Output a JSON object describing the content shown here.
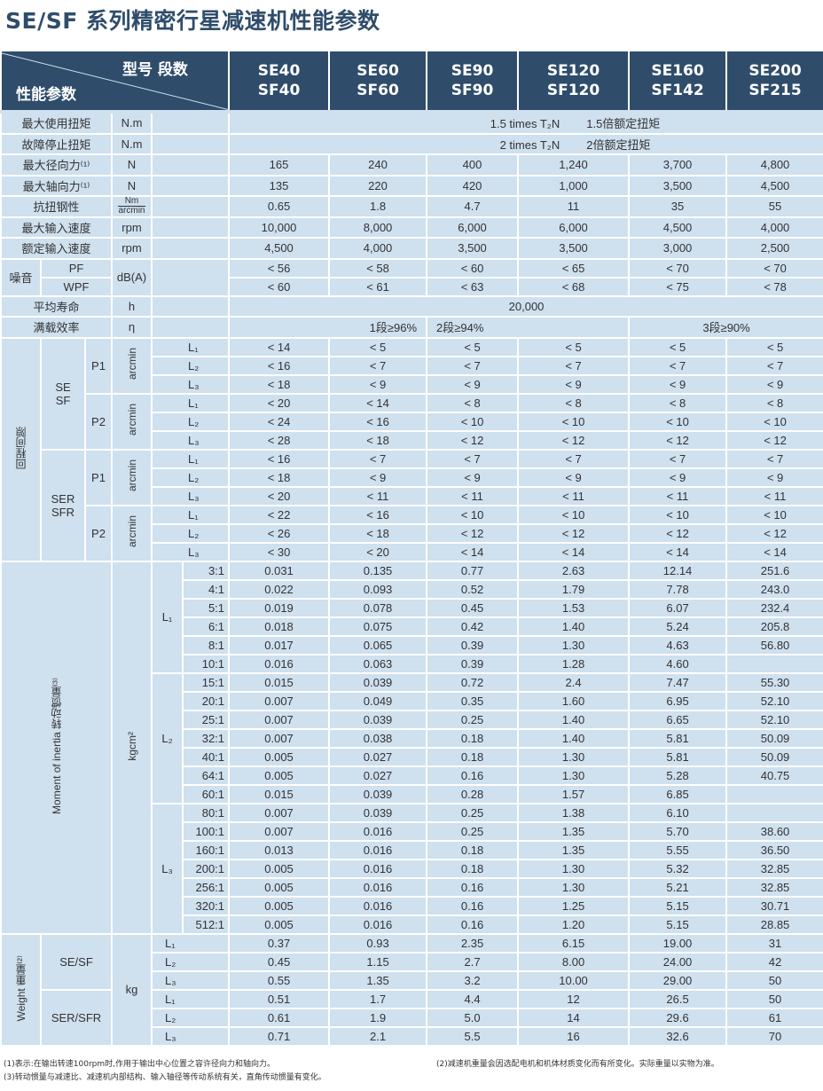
{
  "title": "SE/SF 系列精密行星减速机性能参数",
  "header": {
    "corner_top": "型号 段数",
    "corner_bottom": "性能参数",
    "models": [
      [
        "SE40",
        "SF40"
      ],
      [
        "SE60",
        "SF60"
      ],
      [
        "SE90",
        "SF90"
      ],
      [
        "SE120",
        "SF120"
      ],
      [
        "SE160",
        "SF142"
      ],
      [
        "SE200",
        "SF215"
      ]
    ]
  },
  "general": [
    {
      "label": "最大使用扭矩",
      "unit": "N.m",
      "span": [
        "1.5 times T₂N",
        "1.5倍额定扭矩"
      ]
    },
    {
      "label": "故障停止扭矩",
      "unit": "N.m",
      "span": [
        "2 times T₂N",
        "2倍额定扭矩"
      ]
    },
    {
      "label": "最大径向力⁽¹⁾",
      "unit": "N",
      "values": [
        "165",
        "240",
        "400",
        "1,240",
        "3,700",
        "4,800"
      ]
    },
    {
      "label": "最大轴向力⁽¹⁾",
      "unit": "N",
      "values": [
        "135",
        "220",
        "420",
        "1,000",
        "3,500",
        "4,500"
      ]
    },
    {
      "label": "抗扭钢性",
      "unit": [
        "Nm",
        "arcmin"
      ],
      "values": [
        "0.65",
        "1.8",
        "4.7",
        "11",
        "35",
        "55"
      ]
    },
    {
      "label": "最大输入速度",
      "unit": "rpm",
      "values": [
        "10,000",
        "8,000",
        "6,000",
        "6,000",
        "4,500",
        "4,000"
      ]
    },
    {
      "label": "额定输入速度",
      "unit": "rpm",
      "values": [
        "4,500",
        "4,000",
        "3,500",
        "3,500",
        "3,000",
        "2,500"
      ]
    }
  ],
  "noise": {
    "label": "噪音",
    "unit": "dB(A)",
    "rows": [
      {
        "label": "PF",
        "values": [
          "< 56",
          "< 58",
          "< 60",
          "< 65",
          "< 70",
          "< 70"
        ]
      },
      {
        "label": "WPF",
        "values": [
          "< 60",
          "< 61",
          "< 63",
          "< 68",
          "< 75",
          "< 78"
        ]
      }
    ]
  },
  "life": {
    "label": "平均寿命",
    "unit": "h",
    "value": "20,000"
  },
  "efficiency": {
    "label": "满载效率",
    "unit": "η",
    "values": [
      "1段≥96%",
      "2段≥94%",
      "3段≥90%"
    ]
  },
  "backlash": {
    "label": "回程间隙",
    "unit": "arcmin",
    "groups": [
      {
        "label": [
          "SE",
          "SF"
        ],
        "sub": [
          {
            "label": "P1",
            "rows": [
              [
                "L₁",
                "< 14",
                "< 5",
                "< 5",
                "< 5",
                "< 5",
                "< 5"
              ],
              [
                "L₂",
                "< 16",
                "< 7",
                "< 7",
                "< 7",
                "< 7",
                "< 7"
              ],
              [
                "L₃",
                "< 18",
                "< 9",
                "< 9",
                "< 9",
                "< 9",
                "< 9"
              ]
            ]
          },
          {
            "label": "P2",
            "rows": [
              [
                "L₁",
                "< 20",
                "< 14",
                "< 8",
                "< 8",
                "< 8",
                "< 8"
              ],
              [
                "L₂",
                "< 24",
                "< 16",
                "< 10",
                "< 10",
                "< 10",
                "< 10"
              ],
              [
                "L₃",
                "< 28",
                "< 18",
                "< 12",
                "< 12",
                "< 12",
                "< 12"
              ]
            ]
          }
        ]
      },
      {
        "label": [
          "SER",
          "SFR"
        ],
        "sub": [
          {
            "label": "P1",
            "rows": [
              [
                "L₁",
                "< 16",
                "< 7",
                "< 7",
                "< 7",
                "< 7",
                "< 7"
              ],
              [
                "L₂",
                "< 18",
                "< 9",
                "< 9",
                "< 9",
                "< 9",
                "< 9"
              ],
              [
                "L₃",
                "< 20",
                "< 11",
                "< 11",
                "< 11",
                "< 11",
                "< 11"
              ]
            ]
          },
          {
            "label": "P2",
            "rows": [
              [
                "L₁",
                "< 22",
                "< 16",
                "< 10",
                "< 10",
                "< 10",
                "< 10"
              ],
              [
                "L₂",
                "< 26",
                "< 18",
                "< 12",
                "< 12",
                "< 12",
                "< 12"
              ],
              [
                "L₃",
                "< 30",
                "< 20",
                "< 14",
                "< 14",
                "< 14",
                "< 14"
              ]
            ]
          }
        ]
      }
    ]
  },
  "inertia": {
    "label": "Moment of inertia 转动惯量⁽³⁾",
    "unit": "kgcm²",
    "groups": [
      {
        "label": "L₁",
        "rows": [
          [
            "3:1",
            "0.031",
            "0.135",
            "0.77",
            "2.63",
            "12.14",
            "251.6"
          ],
          [
            "4:1",
            "0.022",
            "0.093",
            "0.52",
            "1.79",
            "7.78",
            "243.0"
          ],
          [
            "5:1",
            "0.019",
            "0.078",
            "0.45",
            "1.53",
            "6.07",
            "232.4"
          ],
          [
            "6:1",
            "0.018",
            "0.075",
            "0.42",
            "1.40",
            "5.24",
            "205.8"
          ],
          [
            "8:1",
            "0.017",
            "0.065",
            "0.39",
            "1.30",
            "4.63",
            "56.80"
          ],
          [
            "10:1",
            "0.016",
            "0.063",
            "0.39",
            "1.28",
            "4.60",
            ""
          ]
        ]
      },
      {
        "label": "L₂",
        "rows": [
          [
            "15:1",
            "0.015",
            "0.039",
            "0.72",
            "2.4",
            "7.47",
            "55.30"
          ],
          [
            "20:1",
            "0.007",
            "0.049",
            "0.35",
            "1.60",
            "6.95",
            "52.10"
          ],
          [
            "25:1",
            "0.007",
            "0.039",
            "0.25",
            "1.40",
            "6.65",
            "52.10"
          ],
          [
            "32:1",
            "0.007",
            "0.038",
            "0.18",
            "1.40",
            "5.81",
            "50.09"
          ],
          [
            "40:1",
            "0.005",
            "0.027",
            "0.18",
            "1.30",
            "5.81",
            "50.09"
          ],
          [
            "64:1",
            "0.005",
            "0.027",
            "0.16",
            "1.30",
            "5.28",
            "40.75"
          ],
          [
            "60:1",
            "0.015",
            "0.039",
            "0.28",
            "1.57",
            "6.85",
            ""
          ]
        ]
      },
      {
        "label": "L₃",
        "rows": [
          [
            "80:1",
            "0.007",
            "0.039",
            "0.25",
            "1.38",
            "6.10",
            ""
          ],
          [
            "100:1",
            "0.007",
            "0.016",
            "0.25",
            "1.35",
            "5.70",
            "38.60"
          ],
          [
            "160:1",
            "0.013",
            "0.016",
            "0.18",
            "1.35",
            "5.55",
            "36.50"
          ],
          [
            "200:1",
            "0.005",
            "0.016",
            "0.18",
            "1.30",
            "5.32",
            "32.85"
          ],
          [
            "256:1",
            "0.005",
            "0.016",
            "0.16",
            "1.30",
            "5.21",
            "32.85"
          ],
          [
            "320:1",
            "0.005",
            "0.016",
            "0.16",
            "1.25",
            "5.15",
            "30.71"
          ],
          [
            "512:1",
            "0.005",
            "0.016",
            "0.16",
            "1.20",
            "5.15",
            "28.85"
          ]
        ]
      }
    ]
  },
  "weight": {
    "label": "Weight 重量⁽²⁾",
    "unit": "kg",
    "groups": [
      {
        "label": "SE/SF",
        "rows": [
          [
            "L₁",
            "0.37",
            "0.93",
            "2.35",
            "6.15",
            "19.00",
            "31"
          ],
          [
            "L₂",
            "0.45",
            "1.15",
            "2.7",
            "8.00",
            "24.00",
            "42"
          ],
          [
            "L₃",
            "0.55",
            "1.35",
            "3.2",
            "10.00",
            "29.00",
            "50"
          ]
        ]
      },
      {
        "label": "SER/SFR",
        "rows": [
          [
            "L₁",
            "0.51",
            "1.7",
            "4.4",
            "12",
            "26.5",
            "50"
          ],
          [
            "L₂",
            "0.61",
            "1.9",
            "5.0",
            "14",
            "29.6",
            "61"
          ],
          [
            "L₃",
            "0.71",
            "2.1",
            "5.5",
            "16",
            "32.6",
            "70"
          ]
        ]
      }
    ]
  },
  "notes": [
    "(1)表示:在输出转速100rpm时,作用于输出中心位置之容许径向力和轴向力。",
    "(3)转动惯量与减速比、减速机内部结构、输入轴径等传动系统有关，直角传动惯量有变化。",
    "(2)减速机重量会因选配电机和机体材质变化而有所变化。实际重量以实物为准。"
  ],
  "colors": {
    "header": "#2f4d6b",
    "cell": "#cfe0ef",
    "title": "#2f4d6b"
  }
}
